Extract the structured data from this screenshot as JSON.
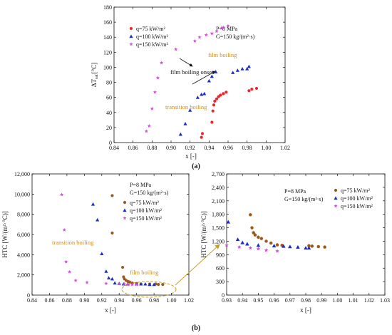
{
  "colors": {
    "q75": "#9b5a1c",
    "q75_top": "#e8262b",
    "q100": "#1b2fc4",
    "q150": "#d34fd6",
    "annotation_orange": "#d08a17",
    "ellipse": "#c8a020"
  },
  "chart_data": [
    {
      "id": "a",
      "type": "scatter",
      "panel_label": "(a)",
      "xlabel": "x [-]",
      "ylabel": "ΔT",
      "ylabel_sub": "sat",
      "ylabel_unit": "[°C]",
      "xlim": [
        0.84,
        1.02
      ],
      "ylim": [
        0,
        180
      ],
      "xticks": [
        "0.84",
        "0.86",
        "0.88",
        "0.90",
        "0.92",
        "0.94",
        "0.96",
        "0.98",
        "1.00",
        "1.02"
      ],
      "yticks": [
        "0",
        "20",
        "40",
        "60",
        "80",
        "100",
        "120",
        "140",
        "160",
        "180"
      ],
      "legend": [
        "q=75 kW/m²",
        "q=100 kW/m²",
        "q=150 kW/m²"
      ],
      "conditions": [
        "P=8 MPa",
        "G=150 kg/(m²·s)"
      ],
      "annotations": [
        "film boiling",
        "film boiling onset",
        "transition boiling"
      ],
      "series": [
        {
          "name": "q=75 kW/m²",
          "marker": "circle",
          "x": [
            0.932,
            0.933,
            0.943,
            0.944,
            0.945,
            0.946,
            0.948,
            0.95,
            0.952,
            0.955,
            0.958,
            0.982,
            0.985,
            0.99
          ],
          "y": [
            7,
            12,
            27,
            42,
            50,
            55,
            58,
            61,
            63,
            65,
            67,
            69,
            71,
            72
          ]
        },
        {
          "name": "q=100 kW/m²",
          "marker": "triangle",
          "x": [
            0.91,
            0.915,
            0.92,
            0.928,
            0.932,
            0.935,
            0.94,
            0.943,
            0.947,
            0.965,
            0.97,
            0.975,
            0.98,
            0.982
          ],
          "y": [
            11,
            25,
            43,
            60,
            64,
            65,
            82,
            88,
            94,
            93,
            96,
            98,
            98,
            101
          ]
        },
        {
          "name": "q=150 kW/m²",
          "marker": "star",
          "x": [
            0.874,
            0.877,
            0.88,
            0.883,
            0.886,
            0.89,
            0.905,
            0.925,
            0.93,
            0.937,
            0.943,
            0.948,
            0.953,
            0.955,
            0.96
          ],
          "y": [
            15,
            22,
            45,
            67,
            86,
            106,
            124,
            135,
            140,
            143,
            145,
            148,
            152,
            153,
            155
          ]
        }
      ]
    },
    {
      "id": "b-left",
      "type": "scatter",
      "panel_label": "(b)",
      "xlabel": "x [-]",
      "ylabel": "HTC [W/(m²·°C)]",
      "xlim": [
        0.84,
        1.02
      ],
      "ylim": [
        0,
        12000
      ],
      "xticks": [
        "0.84",
        "0.86",
        "0.88",
        "0.90",
        "0.92",
        "0.94",
        "0.96",
        "0.98",
        "1.00",
        "1.02"
      ],
      "yticks": [
        "0",
        "2,000",
        "4,000",
        "6,000",
        "8,000",
        "10,000",
        "12,000"
      ],
      "legend": [
        "q=75 kW/m²",
        "q=100 kW/m²",
        "q=150 kW/m²"
      ],
      "conditions": [
        "P=8 MPa",
        "G=150 kg/(m²·s)"
      ],
      "annotations": [
        "transition boiling",
        "film boiling"
      ],
      "series": [
        {
          "name": "q=75 kW/m²",
          "marker": "circle",
          "x": [
            0.932,
            0.932,
            0.944,
            0.945,
            0.946,
            0.948,
            0.95,
            0.952,
            0.955,
            0.96,
            0.965,
            0.975,
            0.982,
            0.985,
            0.99
          ],
          "y": [
            9850,
            6150,
            2750,
            1800,
            1600,
            1450,
            1350,
            1300,
            1200,
            1150,
            1100,
            1100,
            1100,
            1050,
            1050
          ]
        },
        {
          "name": "q=100 kW/m²",
          "marker": "triangle",
          "x": [
            0.91,
            0.915,
            0.92,
            0.925,
            0.928,
            0.932,
            0.935,
            0.94,
            0.945,
            0.95,
            0.96,
            0.965,
            0.97,
            0.975,
            0.98
          ],
          "y": [
            9000,
            7450,
            4100,
            2350,
            1700,
            1600,
            1200,
            1150,
            1100,
            1100,
            1100,
            1100,
            1100,
            1050,
            1050
          ]
        },
        {
          "name": "q=150 kW/m²",
          "marker": "star",
          "x": [
            0.874,
            0.877,
            0.879,
            0.883,
            0.89,
            0.903,
            0.925,
            0.94,
            0.946,
            0.95,
            0.955,
            0.96
          ],
          "y": [
            9950,
            6450,
            3300,
            2300,
            1450,
            1250,
            1150,
            1100,
            1100,
            1050,
            1050,
            1050
          ]
        }
      ]
    },
    {
      "id": "b-right",
      "type": "scatter",
      "xlabel": "x [-]",
      "ylabel": "HTC [W/(m²·°C)]",
      "xlim": [
        0.93,
        1.03
      ],
      "ylim": [
        0,
        2700
      ],
      "xticks": [
        "0.93",
        "0.94",
        "0.95",
        "0.96",
        "0.97",
        "0.98",
        "0.99",
        "1.00",
        "1.01",
        "1.02",
        "1.03"
      ],
      "yticks": [
        "0",
        "300",
        "600",
        "900",
        "1,200",
        "1,500",
        "1,800",
        "2,100",
        "2,400",
        "2,700"
      ],
      "legend": [
        "q=75 kW/m²",
        "q=100 kW/m²",
        "q=150 kW/m²"
      ],
      "conditions": [
        "P=8 MPa",
        "G=150 kg/(m²·s)"
      ],
      "series": [
        {
          "name": "q=75 kW/m²",
          "marker": "circle",
          "x": [
            0.945,
            0.946,
            0.947,
            0.948,
            0.95,
            0.952,
            0.955,
            0.958,
            0.962,
            0.965,
            0.982,
            0.984,
            0.988,
            0.992
          ],
          "y": [
            1790,
            1500,
            1390,
            1340,
            1290,
            1260,
            1200,
            1160,
            1120,
            1110,
            1100,
            1090,
            1080,
            1070
          ]
        },
        {
          "name": "q=100 kW/m²",
          "marker": "triangle",
          "x": [
            0.931,
            0.937,
            0.94,
            0.943,
            0.95,
            0.96,
            0.966,
            0.97,
            0.975,
            0.98,
            0.982
          ],
          "y": [
            1630,
            1240,
            1170,
            1140,
            1110,
            1100,
            1090,
            1080,
            1070,
            1050,
            1050
          ]
        },
        {
          "name": "q=150 kW/m²",
          "marker": "star",
          "x": [
            0.93,
            0.938,
            0.945,
            0.95,
            0.955,
            0.962
          ],
          "y": [
            1110,
            1070,
            1050,
            1030,
            1000,
            980
          ]
        }
      ]
    }
  ]
}
